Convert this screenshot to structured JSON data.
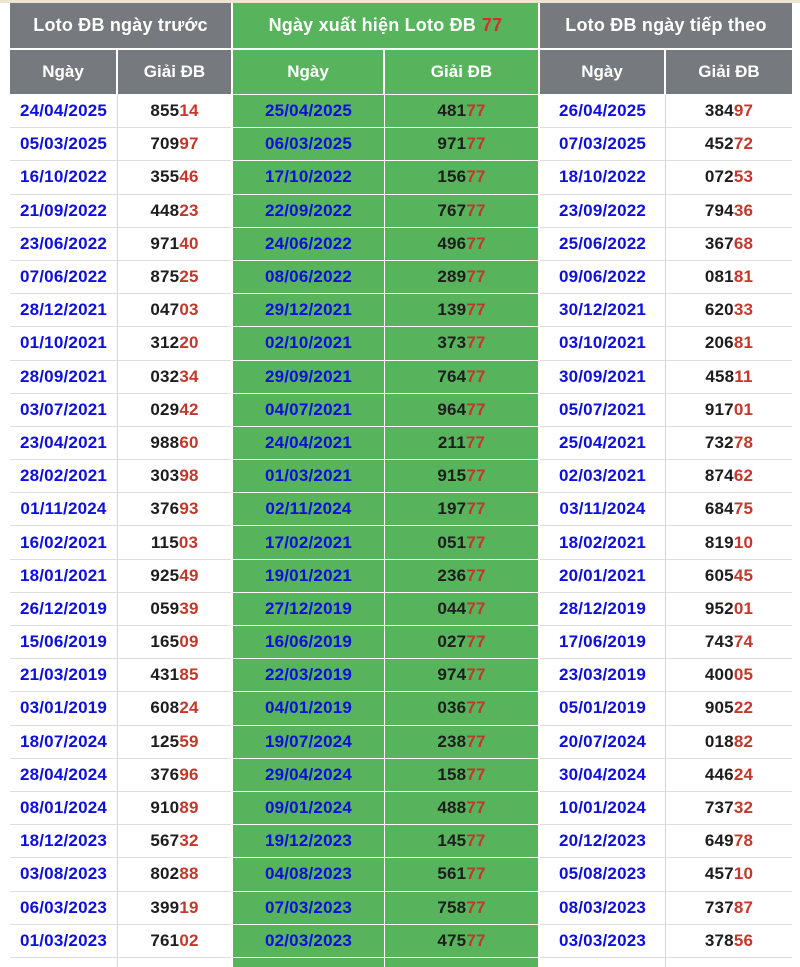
{
  "colors": {
    "green_header": "#58b45c",
    "gray_header": "#76797d",
    "date_blue": "#0e0edd",
    "highlight_red": "#c0392b",
    "header_red_77": "#d32f2f"
  },
  "header": {
    "group_prev": "Loto ĐB ngày trước",
    "group_hit_prefix": "Ngày xuất hiện Loto ĐB",
    "group_hit_number": "77",
    "group_next": "Loto ĐB ngày tiếp theo",
    "col_date": "Ngày",
    "col_prize": "Giải ĐB"
  },
  "rows": [
    {
      "prev_date": "24/04/2025",
      "prev_prize": "855",
      "prev_hot": "14",
      "hit_date": "25/04/2025",
      "hit_prize": "481",
      "hit_hot": "77",
      "next_date": "26/04/2025",
      "next_prize": "384",
      "next_hot": "97"
    },
    {
      "prev_date": "05/03/2025",
      "prev_prize": "709",
      "prev_hot": "97",
      "hit_date": "06/03/2025",
      "hit_prize": "971",
      "hit_hot": "77",
      "next_date": "07/03/2025",
      "next_prize": "452",
      "next_hot": "72"
    },
    {
      "prev_date": "16/10/2022",
      "prev_prize": "355",
      "prev_hot": "46",
      "hit_date": "17/10/2022",
      "hit_prize": "156",
      "hit_hot": "77",
      "next_date": "18/10/2022",
      "next_prize": "072",
      "next_hot": "53"
    },
    {
      "prev_date": "21/09/2022",
      "prev_prize": "448",
      "prev_hot": "23",
      "hit_date": "22/09/2022",
      "hit_prize": "767",
      "hit_hot": "77",
      "next_date": "23/09/2022",
      "next_prize": "794",
      "next_hot": "36"
    },
    {
      "prev_date": "23/06/2022",
      "prev_prize": "971",
      "prev_hot": "40",
      "hit_date": "24/06/2022",
      "hit_prize": "496",
      "hit_hot": "77",
      "next_date": "25/06/2022",
      "next_prize": "367",
      "next_hot": "68"
    },
    {
      "prev_date": "07/06/2022",
      "prev_prize": "875",
      "prev_hot": "25",
      "hit_date": "08/06/2022",
      "hit_prize": "289",
      "hit_hot": "77",
      "next_date": "09/06/2022",
      "next_prize": "081",
      "next_hot": "81"
    },
    {
      "prev_date": "28/12/2021",
      "prev_prize": "047",
      "prev_hot": "03",
      "hit_date": "29/12/2021",
      "hit_prize": "139",
      "hit_hot": "77",
      "next_date": "30/12/2021",
      "next_prize": "620",
      "next_hot": "33"
    },
    {
      "prev_date": "01/10/2021",
      "prev_prize": "312",
      "prev_hot": "20",
      "hit_date": "02/10/2021",
      "hit_prize": "373",
      "hit_hot": "77",
      "next_date": "03/10/2021",
      "next_prize": "206",
      "next_hot": "81"
    },
    {
      "prev_date": "28/09/2021",
      "prev_prize": "032",
      "prev_hot": "34",
      "hit_date": "29/09/2021",
      "hit_prize": "764",
      "hit_hot": "77",
      "next_date": "30/09/2021",
      "next_prize": "458",
      "next_hot": "11"
    },
    {
      "prev_date": "03/07/2021",
      "prev_prize": "029",
      "prev_hot": "42",
      "hit_date": "04/07/2021",
      "hit_prize": "964",
      "hit_hot": "77",
      "next_date": "05/07/2021",
      "next_prize": "917",
      "next_hot": "01"
    },
    {
      "prev_date": "23/04/2021",
      "prev_prize": "988",
      "prev_hot": "60",
      "hit_date": "24/04/2021",
      "hit_prize": "211",
      "hit_hot": "77",
      "next_date": "25/04/2021",
      "next_prize": "732",
      "next_hot": "78"
    },
    {
      "prev_date": "28/02/2021",
      "prev_prize": "303",
      "prev_hot": "98",
      "hit_date": "01/03/2021",
      "hit_prize": "915",
      "hit_hot": "77",
      "next_date": "02/03/2021",
      "next_prize": "874",
      "next_hot": "62"
    },
    {
      "prev_date": "01/11/2024",
      "prev_prize": "376",
      "prev_hot": "93",
      "hit_date": "02/11/2024",
      "hit_prize": "197",
      "hit_hot": "77",
      "next_date": "03/11/2024",
      "next_prize": "684",
      "next_hot": "75"
    },
    {
      "prev_date": "16/02/2021",
      "prev_prize": "115",
      "prev_hot": "03",
      "hit_date": "17/02/2021",
      "hit_prize": "051",
      "hit_hot": "77",
      "next_date": "18/02/2021",
      "next_prize": "819",
      "next_hot": "10"
    },
    {
      "prev_date": "18/01/2021",
      "prev_prize": "925",
      "prev_hot": "49",
      "hit_date": "19/01/2021",
      "hit_prize": "236",
      "hit_hot": "77",
      "next_date": "20/01/2021",
      "next_prize": "605",
      "next_hot": "45"
    },
    {
      "prev_date": "26/12/2019",
      "prev_prize": "059",
      "prev_hot": "39",
      "hit_date": "27/12/2019",
      "hit_prize": "044",
      "hit_hot": "77",
      "next_date": "28/12/2019",
      "next_prize": "952",
      "next_hot": "01"
    },
    {
      "prev_date": "15/06/2019",
      "prev_prize": "165",
      "prev_hot": "09",
      "hit_date": "16/06/2019",
      "hit_prize": "027",
      "hit_hot": "77",
      "next_date": "17/06/2019",
      "next_prize": "743",
      "next_hot": "74"
    },
    {
      "prev_date": "21/03/2019",
      "prev_prize": "431",
      "prev_hot": "85",
      "hit_date": "22/03/2019",
      "hit_prize": "974",
      "hit_hot": "77",
      "next_date": "23/03/2019",
      "next_prize": "400",
      "next_hot": "05"
    },
    {
      "prev_date": "03/01/2019",
      "prev_prize": "608",
      "prev_hot": "24",
      "hit_date": "04/01/2019",
      "hit_prize": "036",
      "hit_hot": "77",
      "next_date": "05/01/2019",
      "next_prize": "905",
      "next_hot": "22"
    },
    {
      "prev_date": "18/07/2024",
      "prev_prize": "125",
      "prev_hot": "59",
      "hit_date": "19/07/2024",
      "hit_prize": "238",
      "hit_hot": "77",
      "next_date": "20/07/2024",
      "next_prize": "018",
      "next_hot": "82"
    },
    {
      "prev_date": "28/04/2024",
      "prev_prize": "376",
      "prev_hot": "96",
      "hit_date": "29/04/2024",
      "hit_prize": "158",
      "hit_hot": "77",
      "next_date": "30/04/2024",
      "next_prize": "446",
      "next_hot": "24"
    },
    {
      "prev_date": "08/01/2024",
      "prev_prize": "910",
      "prev_hot": "89",
      "hit_date": "09/01/2024",
      "hit_prize": "488",
      "hit_hot": "77",
      "next_date": "10/01/2024",
      "next_prize": "737",
      "next_hot": "32"
    },
    {
      "prev_date": "18/12/2023",
      "prev_prize": "567",
      "prev_hot": "32",
      "hit_date": "19/12/2023",
      "hit_prize": "145",
      "hit_hot": "77",
      "next_date": "20/12/2023",
      "next_prize": "649",
      "next_hot": "78"
    },
    {
      "prev_date": "03/08/2023",
      "prev_prize": "802",
      "prev_hot": "88",
      "hit_date": "04/08/2023",
      "hit_prize": "561",
      "hit_hot": "77",
      "next_date": "05/08/2023",
      "next_prize": "457",
      "next_hot": "10"
    },
    {
      "prev_date": "06/03/2023",
      "prev_prize": "399",
      "prev_hot": "19",
      "hit_date": "07/03/2023",
      "hit_prize": "758",
      "hit_hot": "77",
      "next_date": "08/03/2023",
      "next_prize": "737",
      "next_hot": "87"
    },
    {
      "prev_date": "01/03/2023",
      "prev_prize": "761",
      "prev_hot": "02",
      "hit_date": "02/03/2023",
      "hit_prize": "475",
      "hit_hot": "77",
      "next_date": "03/03/2023",
      "next_prize": "378",
      "next_hot": "56"
    }
  ]
}
